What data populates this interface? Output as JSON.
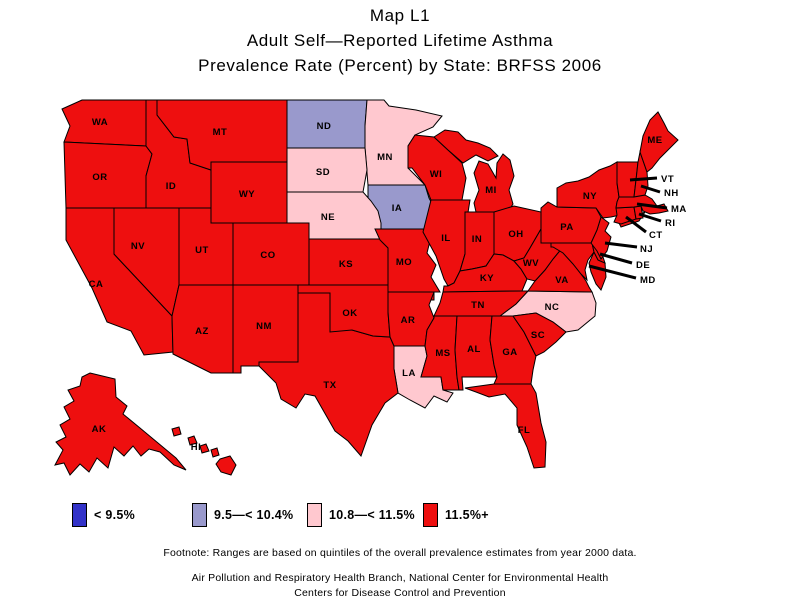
{
  "title": {
    "line1": "Map L1",
    "line2": "Adult Self—Reported Lifetime Asthma",
    "line3": "Prevalence Rate (Percent) by State: BRFSS 2006"
  },
  "chart_data": {
    "type": "choropleth_map",
    "region": "United States",
    "title": "Map L1 — Adult Self-Reported Lifetime Asthma Prevalence Rate (Percent) by State: BRFSS 2006",
    "legend_position": "bottom",
    "categories": [
      {
        "key": "q1",
        "label": "< 9.5%",
        "color": "#3232C8",
        "states": []
      },
      {
        "key": "q2",
        "label": "9.5—< 10.4%",
        "color": "#9999CC",
        "states": [
          "ND",
          "IA"
        ]
      },
      {
        "key": "q3",
        "label": "10.8—< 11.5%",
        "color": "#FFC8CF",
        "states": [
          "MN",
          "SD",
          "NE",
          "NC",
          "LA"
        ]
      },
      {
        "key": "q4",
        "label": "11.5%+",
        "color": "#EE0F0F",
        "states": [
          "WA",
          "OR",
          "CA",
          "NV",
          "ID",
          "MT",
          "WY",
          "UT",
          "CO",
          "AZ",
          "NM",
          "TX",
          "OK",
          "KS",
          "MO",
          "AR",
          "WI",
          "IL",
          "IN",
          "MI",
          "OH",
          "KY",
          "TN",
          "MS",
          "AL",
          "GA",
          "FL",
          "SC",
          "VA",
          "WV",
          "MD",
          "DE",
          "NJ",
          "PA",
          "NY",
          "CT",
          "RI",
          "MA",
          "VT",
          "NH",
          "ME",
          "AK",
          "HI"
        ]
      }
    ]
  },
  "footnote": "Footnote: Ranges are based on quintiles of the overall prevalence estimates from year 2000 data.",
  "credits": {
    "line1": "Air Pollution and Respiratory Health Branch, National Center for Environmental Health",
    "line2": "Centers for Disease Control and Prevention"
  }
}
